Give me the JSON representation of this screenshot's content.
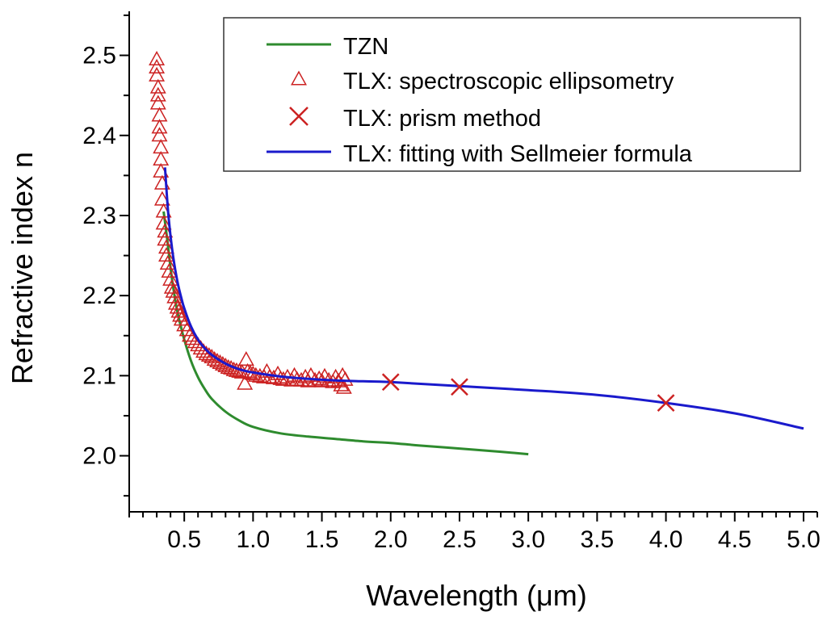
{
  "chart_data": {
    "type": "line",
    "title": "",
    "xlabel": "Wavelength (μm)",
    "ylabel": "Refractive index n",
    "xlim": [
      0.1,
      5.1
    ],
    "ylim": [
      1.93,
      2.555
    ],
    "x_ticks": [
      "0.5",
      "1.0",
      "1.5",
      "2.0",
      "2.5",
      "3.0",
      "3.5",
      "4.0",
      "4.5",
      "5.0"
    ],
    "y_ticks": [
      "2.0",
      "2.1",
      "2.2",
      "2.3",
      "2.4",
      "2.5"
    ],
    "grid": false,
    "legend_position": "top-right",
    "series": [
      {
        "name": "TZN",
        "style": "line",
        "color": "#2e8b2e",
        "x": [
          0.35,
          0.38,
          0.4,
          0.42,
          0.45,
          0.48,
          0.5,
          0.55,
          0.6,
          0.65,
          0.7,
          0.8,
          0.9,
          1.0,
          1.2,
          1.4,
          1.6,
          1.8,
          2.0,
          2.2,
          2.5,
          2.8,
          3.0
        ],
        "y": [
          2.305,
          2.265,
          2.235,
          2.21,
          2.18,
          2.158,
          2.145,
          2.118,
          2.098,
          2.083,
          2.071,
          2.055,
          2.044,
          2.036,
          2.028,
          2.024,
          2.021,
          2.018,
          2.016,
          2.013,
          2.009,
          2.005,
          2.002
        ]
      },
      {
        "name": "TLX: spectroscopic ellipsometry",
        "style": "marker-triangle",
        "color": "#cc2222",
        "x": [
          0.3,
          0.3,
          0.3,
          0.31,
          0.31,
          0.31,
          0.32,
          0.32,
          0.32,
          0.33,
          0.33,
          0.33,
          0.34,
          0.34,
          0.35,
          0.35,
          0.36,
          0.36,
          0.37,
          0.37,
          0.38,
          0.39,
          0.4,
          0.41,
          0.42,
          0.43,
          0.44,
          0.45,
          0.46,
          0.47,
          0.48,
          0.5,
          0.52,
          0.54,
          0.56,
          0.58,
          0.6,
          0.62,
          0.64,
          0.66,
          0.68,
          0.7,
          0.72,
          0.74,
          0.76,
          0.78,
          0.8,
          0.82,
          0.84,
          0.86,
          0.88,
          0.9,
          0.92,
          0.94,
          0.95,
          0.96,
          0.98,
          1.0,
          1.02,
          1.05,
          1.08,
          1.1,
          1.12,
          1.15,
          1.18,
          1.2,
          1.22,
          1.25,
          1.28,
          1.3,
          1.32,
          1.35,
          1.38,
          1.4,
          1.42,
          1.45,
          1.48,
          1.5,
          1.52,
          1.55,
          1.58,
          1.6,
          1.62,
          1.64,
          1.65,
          1.66,
          1.67
        ],
        "y": [
          2.495,
          2.485,
          2.475,
          2.46,
          2.45,
          2.44,
          2.425,
          2.41,
          2.4,
          2.385,
          2.37,
          2.355,
          2.34,
          2.32,
          2.305,
          2.29,
          2.28,
          2.27,
          2.26,
          2.25,
          2.24,
          2.23,
          2.22,
          2.21,
          2.205,
          2.198,
          2.19,
          2.185,
          2.18,
          2.175,
          2.17,
          2.163,
          2.157,
          2.15,
          2.146,
          2.142,
          2.138,
          2.134,
          2.13,
          2.127,
          2.125,
          2.123,
          2.12,
          2.118,
          2.116,
          2.114,
          2.112,
          2.11,
          2.109,
          2.107,
          2.106,
          2.105,
          2.104,
          2.09,
          2.12,
          2.105,
          2.103,
          2.102,
          2.1,
          2.099,
          2.098,
          2.105,
          2.098,
          2.097,
          2.102,
          2.096,
          2.095,
          2.098,
          2.094,
          2.1,
          2.095,
          2.094,
          2.098,
          2.093,
          2.1,
          2.094,
          2.096,
          2.093,
          2.099,
          2.094,
          2.092,
          2.098,
          2.093,
          2.088,
          2.1,
          2.085,
          2.095
        ]
      },
      {
        "name": "TLX: prism method",
        "style": "marker-x",
        "color": "#cc2222",
        "x": [
          2.0,
          2.5,
          4.0
        ],
        "y": [
          2.092,
          2.086,
          2.066
        ]
      },
      {
        "name": "TLX: fitting with Sellmeier formula",
        "style": "line",
        "color": "#1a1acc",
        "x": [
          0.36,
          0.38,
          0.4,
          0.42,
          0.45,
          0.48,
          0.5,
          0.55,
          0.6,
          0.65,
          0.7,
          0.8,
          0.9,
          1.0,
          1.2,
          1.4,
          1.6,
          1.8,
          2.0,
          2.5,
          3.0,
          3.5,
          4.0,
          4.5,
          5.0
        ],
        "y": [
          2.36,
          2.31,
          2.275,
          2.248,
          2.218,
          2.196,
          2.184,
          2.161,
          2.145,
          2.134,
          2.126,
          2.115,
          2.108,
          2.104,
          2.099,
          2.096,
          2.094,
          2.093,
          2.092,
          2.087,
          2.082,
          2.076,
          2.066,
          2.053,
          2.034
        ]
      }
    ]
  }
}
